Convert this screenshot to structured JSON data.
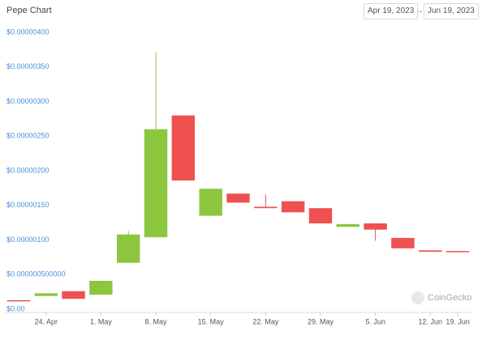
{
  "chart_data": {
    "type": "candlestick",
    "title": "Pepe Chart",
    "date_from": "Apr 19, 2023",
    "date_separator": "→",
    "date_to": "Jun 19, 2023",
    "watermark": "CoinGecko",
    "categories": [
      null,
      "24. Apr",
      null,
      "1. May",
      null,
      "8. May",
      null,
      "15. May",
      null,
      "22. May",
      null,
      "29. May",
      null,
      "5. Jun",
      null,
      "12. Jun",
      "19. Jun"
    ],
    "open": [
      1.3e-07,
      1.9e-07,
      2.6e-07,
      2.1e-07,
      6.7e-07,
      1.04e-06,
      2.8e-06,
      1.35e-06,
      1.67e-06,
      1.48e-06,
      1.56e-06,
      1.46e-06,
      1.19e-06,
      1.24e-06,
      1.03e-06,
      8.5e-07,
      8.4e-07
    ],
    "high": [
      1.3e-07,
      2.3e-07,
      2.6e-07,
      4.1e-07,
      1.13e-06,
      3.71e-06,
      2.8e-06,
      1.74e-06,
      1.67e-06,
      1.66e-06,
      1.56e-06,
      1.46e-06,
      1.23e-06,
      1.24e-06,
      1.03e-06,
      8.5e-07,
      8.4e-07
    ],
    "low": [
      1.3e-07,
      1.9e-07,
      1.5e-07,
      2.1e-07,
      6.7e-07,
      1.04e-06,
      1.86e-06,
      1.35e-06,
      1.54e-06,
      1.46e-06,
      1.4e-06,
      1.24e-06,
      1.19e-06,
      9.9e-07,
      8.8e-07,
      8.3e-07,
      8.4e-07
    ],
    "close": [
      1.3e-07,
      2.3e-07,
      1.5e-07,
      4.1e-07,
      1.08e-06,
      2.6e-06,
      1.86e-06,
      1.74e-06,
      1.54e-06,
      1.46e-06,
      1.4e-06,
      1.24e-06,
      1.23e-06,
      1.15e-06,
      8.8e-07,
      8.3e-07,
      8.4e-07
    ],
    "up_color": "#8cc63f",
    "down_color": "#ef5050",
    "ylim": [
      0,
      4e-06
    ],
    "yticks": [
      {
        "value": 0,
        "label": "$0.00"
      },
      {
        "value": 5e-07,
        "label": "$0.000000500000"
      },
      {
        "value": 1e-06,
        "label": "$0.00000100"
      },
      {
        "value": 1.5e-06,
        "label": "$0.00000150"
      },
      {
        "value": 2e-06,
        "label": "$0.00000200"
      },
      {
        "value": 2.5e-06,
        "label": "$0.00000250"
      },
      {
        "value": 3e-06,
        "label": "$0.00000300"
      },
      {
        "value": 3.5e-06,
        "label": "$0.00000350"
      },
      {
        "value": 4e-06,
        "label": "$0.00000400"
      }
    ],
    "grid": false
  }
}
